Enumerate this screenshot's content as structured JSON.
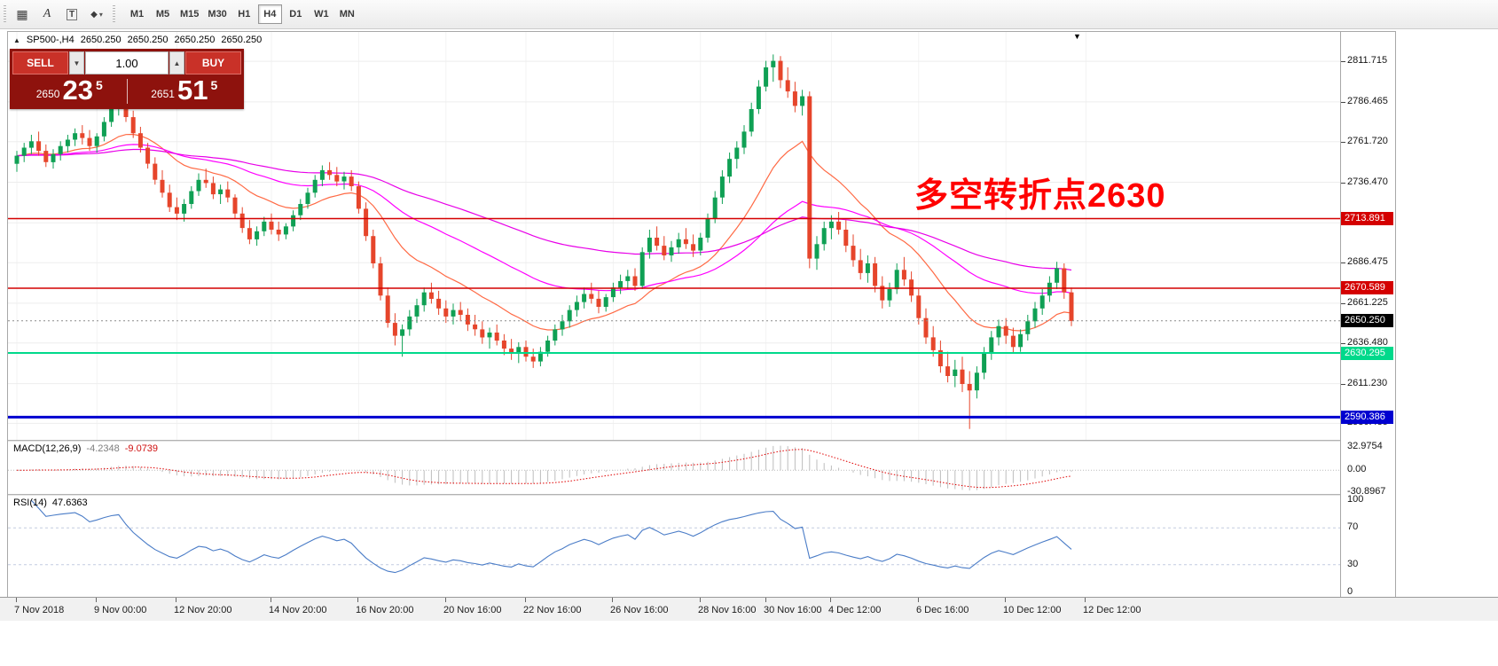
{
  "toolbar": {
    "tools": [
      {
        "name": "grid-icon",
        "glyph": "▦"
      },
      {
        "name": "text-tool-icon",
        "glyph": "A"
      },
      {
        "name": "text-label-icon",
        "glyph": "T"
      },
      {
        "name": "shapes-icon",
        "glyph": "◆"
      },
      {
        "name": "dropdown-caret-icon",
        "glyph": "▾"
      }
    ],
    "timeframes": [
      {
        "label": "M1",
        "active": false
      },
      {
        "label": "M5",
        "active": false
      },
      {
        "label": "M15",
        "active": false
      },
      {
        "label": "M30",
        "active": false
      },
      {
        "label": "H1",
        "active": false
      },
      {
        "label": "H4",
        "active": true
      },
      {
        "label": "D1",
        "active": false
      },
      {
        "label": "W1",
        "active": false
      },
      {
        "label": "MN",
        "active": false
      }
    ]
  },
  "chart": {
    "header": {
      "marker": "▲",
      "symbol": "SP500-,H4",
      "open": "2650.250",
      "high": "2650.250",
      "low": "2650.250",
      "close": "2650.250"
    },
    "annotation": {
      "text": "多空转折点2630",
      "color": "#ff0000"
    },
    "trade_panel": {
      "sell_label": "SELL",
      "buy_label": "BUY",
      "volume": "1.00",
      "volume_down_icon": "▼",
      "volume_up_icon": "▲",
      "bid_big_figure": "2650",
      "bid_points": "23",
      "bid_fraction": "5",
      "ask_big_figure": "2651",
      "ask_points": "51",
      "ask_fraction": "5"
    },
    "shift_marker_glyph": "▼"
  },
  "chart_data": {
    "type": "candlestick",
    "symbol": "SP500-",
    "timeframe": "H4",
    "bull_color": "#0fa054",
    "bear_color": "#e6452b",
    "y_axis": {
      "max": 2830,
      "min": 2579,
      "ticks": [
        {
          "label": "2811.715",
          "value": 2811.715
        },
        {
          "label": "2786.465",
          "value": 2786.465
        },
        {
          "label": "2761.720",
          "value": 2761.72
        },
        {
          "label": "2736.470",
          "value": 2736.47
        },
        {
          "label": "2711.220",
          "value": 2711.22
        },
        {
          "label": "2686.475",
          "value": 2686.475
        },
        {
          "label": "2661.225",
          "value": 2661.225
        },
        {
          "label": "2636.480",
          "value": 2636.48
        },
        {
          "label": "2611.230",
          "value": 2611.23
        },
        {
          "label": "2586.485",
          "value": 2586.485
        }
      ]
    },
    "x_axis": {
      "labels": [
        {
          "label": "7 Nov 2018",
          "index": 0
        },
        {
          "label": "9 Nov 00:00",
          "index": 11
        },
        {
          "label": "12 Nov 20:00",
          "index": 22
        },
        {
          "label": "14 Nov 20:00",
          "index": 35
        },
        {
          "label": "16 Nov 20:00",
          "index": 47
        },
        {
          "label": "20 Nov 16:00",
          "index": 59
        },
        {
          "label": "22 Nov 16:00",
          "index": 70
        },
        {
          "label": "26 Nov 16:00",
          "index": 82
        },
        {
          "label": "28 Nov 16:00",
          "index": 94
        },
        {
          "label": "30 Nov 16:00",
          "index": 103
        },
        {
          "label": "4 Dec 12:00",
          "index": 112
        },
        {
          "label": "6 Dec 16:00",
          "index": 124
        },
        {
          "label": "10 Dec 12:00",
          "index": 136
        },
        {
          "label": "12 Dec 12:00",
          "index": 147
        }
      ]
    },
    "levels": [
      {
        "value": 2713.891,
        "label": "2713.891",
        "color": "#d40000",
        "width": 1.5
      },
      {
        "value": 2670.589,
        "label": "2670.589",
        "color": "#d40000",
        "width": 1.5
      },
      {
        "value": 2630.295,
        "label": "2630.295",
        "color": "#00d98b",
        "width": 2
      },
      {
        "value": 2590.386,
        "label": "2590.386",
        "color": "#0000d0",
        "width": 3
      }
    ],
    "current_price": {
      "value": 2650.25,
      "label": "2650.250",
      "color": "#000000"
    },
    "moving_averages": [
      {
        "period": 18,
        "color": "#ff6a45"
      },
      {
        "period": 45,
        "color": "#ff00ff"
      },
      {
        "period": 90,
        "color": "#e800e8"
      }
    ],
    "candles": [
      [
        2748,
        2756,
        2743,
        2753
      ],
      [
        2753,
        2761,
        2749,
        2758
      ],
      [
        2758,
        2766,
        2754,
        2762
      ],
      [
        2762,
        2768,
        2753,
        2756
      ],
      [
        2756,
        2760,
        2746,
        2749
      ],
      [
        2749,
        2757,
        2745,
        2754
      ],
      [
        2754,
        2762,
        2750,
        2759
      ],
      [
        2759,
        2766,
        2755,
        2763
      ],
      [
        2763,
        2770,
        2759,
        2767
      ],
      [
        2767,
        2772,
        2760,
        2764
      ],
      [
        2764,
        2769,
        2756,
        2759
      ],
      [
        2759,
        2767,
        2755,
        2765
      ],
      [
        2765,
        2777,
        2762,
        2774
      ],
      [
        2774,
        2786,
        2771,
        2782
      ],
      [
        2782,
        2791,
        2778,
        2787
      ],
      [
        2787,
        2790,
        2774,
        2777
      ],
      [
        2777,
        2781,
        2764,
        2767
      ],
      [
        2767,
        2771,
        2755,
        2758
      ],
      [
        2758,
        2761,
        2745,
        2748
      ],
      [
        2748,
        2752,
        2735,
        2738
      ],
      [
        2738,
        2744,
        2727,
        2730
      ],
      [
        2730,
        2735,
        2718,
        2721
      ],
      [
        2721,
        2727,
        2713,
        2717
      ],
      [
        2717,
        2726,
        2712,
        2723
      ],
      [
        2723,
        2734,
        2720,
        2731
      ],
      [
        2731,
        2742,
        2728,
        2738
      ],
      [
        2738,
        2745,
        2733,
        2736
      ],
      [
        2736,
        2740,
        2726,
        2729
      ],
      [
        2729,
        2735,
        2723,
        2732
      ],
      [
        2732,
        2737,
        2724,
        2727
      ],
      [
        2727,
        2729,
        2714,
        2717
      ],
      [
        2717,
        2721,
        2705,
        2708
      ],
      [
        2708,
        2713,
        2698,
        2701
      ],
      [
        2701,
        2709,
        2697,
        2706
      ],
      [
        2706,
        2715,
        2703,
        2712
      ],
      [
        2712,
        2717,
        2704,
        2707
      ],
      [
        2707,
        2712,
        2700,
        2704
      ],
      [
        2704,
        2711,
        2701,
        2709
      ],
      [
        2709,
        2719,
        2706,
        2716
      ],
      [
        2716,
        2726,
        2713,
        2723
      ],
      [
        2723,
        2733,
        2720,
        2730
      ],
      [
        2730,
        2741,
        2727,
        2738
      ],
      [
        2738,
        2747,
        2734,
        2744
      ],
      [
        2744,
        2749,
        2738,
        2741
      ],
      [
        2741,
        2746,
        2734,
        2737
      ],
      [
        2737,
        2743,
        2732,
        2740
      ],
      [
        2740,
        2744,
        2731,
        2734
      ],
      [
        2734,
        2737,
        2717,
        2720
      ],
      [
        2720,
        2724,
        2700,
        2703
      ],
      [
        2703,
        2707,
        2683,
        2686
      ],
      [
        2686,
        2690,
        2663,
        2666
      ],
      [
        2666,
        2671,
        2646,
        2649
      ],
      [
        2649,
        2655,
        2635,
        2641
      ],
      [
        2641,
        2648,
        2628,
        2645
      ],
      [
        2645,
        2657,
        2641,
        2653
      ],
      [
        2653,
        2664,
        2649,
        2660
      ],
      [
        2660,
        2671,
        2656,
        2668
      ],
      [
        2668,
        2674,
        2661,
        2664
      ],
      [
        2664,
        2669,
        2654,
        2658
      ],
      [
        2658,
        2663,
        2649,
        2653
      ],
      [
        2653,
        2661,
        2648,
        2657
      ],
      [
        2657,
        2662,
        2650,
        2654
      ],
      [
        2654,
        2658,
        2644,
        2648
      ],
      [
        2648,
        2654,
        2641,
        2645
      ],
      [
        2645,
        2650,
        2636,
        2640
      ],
      [
        2640,
        2646,
        2633,
        2643
      ],
      [
        2643,
        2648,
        2635,
        2638
      ],
      [
        2638,
        2642,
        2629,
        2633
      ],
      [
        2633,
        2639,
        2626,
        2630
      ],
      [
        2630,
        2637,
        2624,
        2634
      ],
      [
        2634,
        2638,
        2625,
        2628
      ],
      [
        2628,
        2633,
        2621,
        2625
      ],
      [
        2625,
        2634,
        2622,
        2631
      ],
      [
        2631,
        2641,
        2628,
        2638
      ],
      [
        2638,
        2648,
        2635,
        2645
      ],
      [
        2645,
        2654,
        2641,
        2650
      ],
      [
        2650,
        2660,
        2646,
        2657
      ],
      [
        2657,
        2666,
        2653,
        2662
      ],
      [
        2662,
        2671,
        2658,
        2667
      ],
      [
        2667,
        2674,
        2661,
        2664
      ],
      [
        2664,
        2669,
        2655,
        2659
      ],
      [
        2659,
        2667,
        2656,
        2665
      ],
      [
        2665,
        2674,
        2662,
        2671
      ],
      [
        2671,
        2679,
        2667,
        2675
      ],
      [
        2675,
        2682,
        2670,
        2678
      ],
      [
        2678,
        2683,
        2669,
        2672
      ],
      [
        2672,
        2696,
        2670,
        2693
      ],
      [
        2693,
        2707,
        2689,
        2702
      ],
      [
        2702,
        2709,
        2694,
        2697
      ],
      [
        2697,
        2703,
        2688,
        2691
      ],
      [
        2691,
        2700,
        2687,
        2696
      ],
      [
        2696,
        2705,
        2692,
        2701
      ],
      [
        2701,
        2708,
        2695,
        2698
      ],
      [
        2698,
        2704,
        2690,
        2694
      ],
      [
        2694,
        2705,
        2691,
        2702
      ],
      [
        2702,
        2717,
        2699,
        2714
      ],
      [
        2714,
        2731,
        2711,
        2727
      ],
      [
        2727,
        2744,
        2723,
        2740
      ],
      [
        2740,
        2755,
        2736,
        2751
      ],
      [
        2751,
        2762,
        2745,
        2758
      ],
      [
        2758,
        2772,
        2754,
        2768
      ],
      [
        2768,
        2786,
        2765,
        2782
      ],
      [
        2782,
        2800,
        2779,
        2796
      ],
      [
        2796,
        2812,
        2793,
        2808
      ],
      [
        2808,
        2816,
        2799,
        2812
      ],
      [
        2812,
        2815,
        2795,
        2800
      ],
      [
        2800,
        2808,
        2789,
        2793
      ],
      [
        2793,
        2799,
        2780,
        2784
      ],
      [
        2784,
        2794,
        2778,
        2790
      ],
      [
        2790,
        2793,
        2683,
        2689
      ],
      [
        2689,
        2703,
        2682,
        2698
      ],
      [
        2698,
        2712,
        2694,
        2708
      ],
      [
        2708,
        2716,
        2701,
        2712
      ],
      [
        2712,
        2718,
        2704,
        2707
      ],
      [
        2707,
        2713,
        2693,
        2697
      ],
      [
        2697,
        2704,
        2684,
        2688
      ],
      [
        2688,
        2695,
        2676,
        2680
      ],
      [
        2680,
        2691,
        2674,
        2686
      ],
      [
        2686,
        2690,
        2668,
        2672
      ],
      [
        2672,
        2678,
        2658,
        2663
      ],
      [
        2663,
        2674,
        2659,
        2670
      ],
      [
        2670,
        2686,
        2667,
        2682
      ],
      [
        2682,
        2690,
        2672,
        2676
      ],
      [
        2676,
        2681,
        2662,
        2666
      ],
      [
        2666,
        2670,
        2648,
        2652
      ],
      [
        2652,
        2658,
        2636,
        2640
      ],
      [
        2640,
        2647,
        2628,
        2632
      ],
      [
        2632,
        2638,
        2618,
        2622
      ],
      [
        2622,
        2631,
        2612,
        2616
      ],
      [
        2616,
        2626,
        2609,
        2620
      ],
      [
        2620,
        2628,
        2606,
        2611
      ],
      [
        2611,
        2619,
        2583,
        2607
      ],
      [
        2607,
        2622,
        2602,
        2618
      ],
      [
        2618,
        2634,
        2614,
        2630
      ],
      [
        2630,
        2644,
        2626,
        2640
      ],
      [
        2640,
        2651,
        2635,
        2647
      ],
      [
        2647,
        2652,
        2636,
        2641
      ],
      [
        2641,
        2646,
        2630,
        2634
      ],
      [
        2634,
        2645,
        2631,
        2642
      ],
      [
        2642,
        2654,
        2638,
        2650
      ],
      [
        2650,
        2662,
        2646,
        2658
      ],
      [
        2658,
        2670,
        2654,
        2666
      ],
      [
        2666,
        2678,
        2662,
        2674
      ],
      [
        2674,
        2687,
        2670,
        2683
      ],
      [
        2683,
        2686,
        2664,
        2668
      ],
      [
        2668,
        2671,
        2647,
        2650.25
      ]
    ],
    "indicators": [
      {
        "name": "MACD",
        "label": "MACD(12,26,9)",
        "values_text": [
          "-4.2348",
          "-9.0739"
        ],
        "params": [
          12,
          26,
          9
        ],
        "axis": [
          {
            "label": "32.9754",
            "value": 32.9754
          },
          {
            "label": "0.00",
            "value": 0
          },
          {
            "label": "-30.8967",
            "value": -30.8967
          }
        ],
        "range": {
          "max": 40,
          "min": -33
        },
        "histogram_color": "#bdbdbd",
        "signal_color": "#e00000"
      },
      {
        "name": "RSI",
        "label": "RSI(14)",
        "value_text": "47.6363",
        "params": [
          14
        ],
        "axis": [
          {
            "label": "100",
            "value": 100
          },
          {
            "label": "70",
            "value": 70
          },
          {
            "label": "30",
            "value": 30
          },
          {
            "label": "0",
            "value": 0
          }
        ],
        "levels": [
          70,
          30
        ],
        "range": {
          "max": 105,
          "min": -5
        },
        "line_color": "#4a7cc7",
        "level_color": "#c3cbe0"
      }
    ]
  }
}
